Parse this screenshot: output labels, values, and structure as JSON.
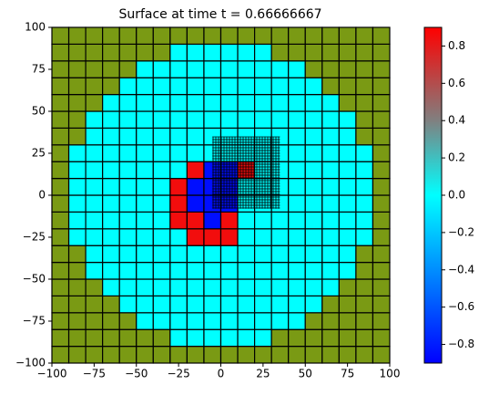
{
  "chart_data": {
    "type": "heatmap",
    "title": "Surface at time t =     0.66666667",
    "x": [
      -95,
      -85,
      -75,
      -65,
      -55,
      -45,
      -35,
      -25,
      -15,
      -5,
      5,
      15,
      25,
      35,
      45,
      55,
      65,
      75,
      85,
      95
    ],
    "y": [
      -95,
      -85,
      -75,
      -65,
      -55,
      -45,
      -35,
      -25,
      -15,
      -5,
      5,
      15,
      25,
      35,
      45,
      55,
      65,
      75,
      85,
      95
    ],
    "z": [
      [
        null,
        null,
        null,
        null,
        null,
        null,
        null,
        null,
        null,
        null,
        null,
        null,
        null,
        null,
        null,
        null,
        null,
        null,
        null,
        null
      ],
      [
        null,
        null,
        null,
        null,
        null,
        null,
        null,
        0,
        0,
        0,
        0,
        0,
        0,
        null,
        null,
        null,
        null,
        null,
        null,
        null
      ],
      [
        null,
        null,
        null,
        null,
        null,
        0,
        0,
        0,
        0,
        0,
        0,
        0,
        0,
        0,
        0,
        null,
        null,
        null,
        null,
        null
      ],
      [
        null,
        null,
        null,
        null,
        0,
        0,
        0,
        0,
        0,
        0,
        0,
        0,
        0,
        0,
        0,
        0,
        null,
        null,
        null,
        null
      ],
      [
        null,
        null,
        null,
        0,
        0,
        0,
        0,
        0,
        0,
        0,
        0,
        0,
        0,
        0,
        0,
        0,
        0,
        null,
        null,
        null
      ],
      [
        null,
        null,
        0,
        0,
        0,
        0,
        0,
        0,
        0,
        0,
        0,
        0,
        0,
        0,
        0,
        0,
        0,
        0,
        null,
        null
      ],
      [
        null,
        null,
        0,
        0,
        0,
        0,
        0,
        0,
        0,
        0,
        0,
        0,
        0,
        0,
        0,
        0,
        0,
        0,
        null,
        null
      ],
      [
        null,
        0,
        0,
        0,
        0,
        0,
        0,
        0,
        0.85,
        0.85,
        0.85,
        0,
        0,
        0,
        0,
        0,
        0,
        0,
        0,
        null
      ],
      [
        null,
        0,
        0,
        0,
        0,
        0,
        0,
        0.85,
        0.85,
        -0.85,
        0.85,
        0,
        0,
        0,
        0,
        0,
        0,
        0,
        0,
        null
      ],
      [
        null,
        0,
        0,
        0,
        0,
        0,
        0,
        0.85,
        -0.85,
        -0.85,
        -0.85,
        0,
        0,
        0,
        0,
        0,
        0,
        0,
        0,
        null
      ],
      [
        null,
        0,
        0,
        0,
        0,
        0,
        0,
        0.85,
        -0.85,
        -0.85,
        -0.85,
        0,
        0,
        0,
        0,
        0,
        0,
        0,
        0,
        null
      ],
      [
        null,
        0,
        0,
        0,
        0,
        0,
        0,
        0,
        0.85,
        -0.85,
        -0.85,
        0.85,
        0,
        0,
        0,
        0,
        0,
        0,
        0,
        null
      ],
      [
        null,
        0,
        0,
        0,
        0,
        0,
        0,
        0,
        0,
        0,
        0,
        0,
        0,
        0,
        0,
        0,
        0,
        0,
        0,
        null
      ],
      [
        null,
        null,
        0,
        0,
        0,
        0,
        0,
        0,
        0,
        0,
        0,
        0,
        0,
        0,
        0,
        0,
        0,
        0,
        null,
        null
      ],
      [
        null,
        null,
        0,
        0,
        0,
        0,
        0,
        0,
        0,
        0,
        0,
        0,
        0,
        0,
        0,
        0,
        0,
        0,
        null,
        null
      ],
      [
        null,
        null,
        null,
        0,
        0,
        0,
        0,
        0,
        0,
        0,
        0,
        0,
        0,
        0,
        0,
        0,
        0,
        null,
        null,
        null
      ],
      [
        null,
        null,
        null,
        null,
        0,
        0,
        0,
        0,
        0,
        0,
        0,
        0,
        0,
        0,
        0,
        0,
        null,
        null,
        null,
        null
      ],
      [
        null,
        null,
        null,
        null,
        null,
        0,
        0,
        0,
        0,
        0,
        0,
        0,
        0,
        0,
        0,
        null,
        null,
        null,
        null,
        null
      ],
      [
        null,
        null,
        null,
        null,
        null,
        null,
        null,
        0,
        0,
        0,
        0,
        0,
        0,
        null,
        null,
        null,
        null,
        null,
        null,
        null
      ],
      [
        null,
        null,
        null,
        null,
        null,
        null,
        null,
        null,
        null,
        null,
        null,
        null,
        null,
        null,
        null,
        null,
        null,
        null,
        null,
        null
      ]
    ],
    "null_color": "#7a9a14",
    "colorscale": [
      [
        -0.9,
        "#0000ff"
      ],
      [
        0,
        "#00ffff"
      ],
      [
        0.4,
        "#808080"
      ],
      [
        0.9,
        "#ff0000"
      ]
    ],
    "zlim": [
      -0.9,
      0.9
    ],
    "zticks": [
      {
        "value": -0.8,
        "label": "−0.8"
      },
      {
        "value": -0.6,
        "label": "−0.6"
      },
      {
        "value": -0.4,
        "label": "−0.4"
      },
      {
        "value": -0.2,
        "label": "−0.2"
      },
      {
        "value": 0,
        "label": "0.0"
      },
      0.2,
      0.4,
      0.6,
      0.8
    ],
    "xlim": [
      -100,
      100
    ],
    "ylim": [
      -100,
      100
    ],
    "xticks": [
      {
        "value": -100,
        "label": "−100"
      },
      {
        "value": -75,
        "label": "−75"
      },
      {
        "value": -50,
        "label": "−50"
      },
      {
        "value": -25,
        "label": "−25"
      },
      0,
      25,
      50,
      75,
      100
    ],
    "yticks": [
      {
        "value": -100,
        "label": "−100"
      },
      {
        "value": -75,
        "label": "−75"
      },
      {
        "value": -50,
        "label": "−50"
      },
      {
        "value": -25,
        "label": "−25"
      },
      0,
      25,
      50,
      75,
      100
    ]
  }
}
